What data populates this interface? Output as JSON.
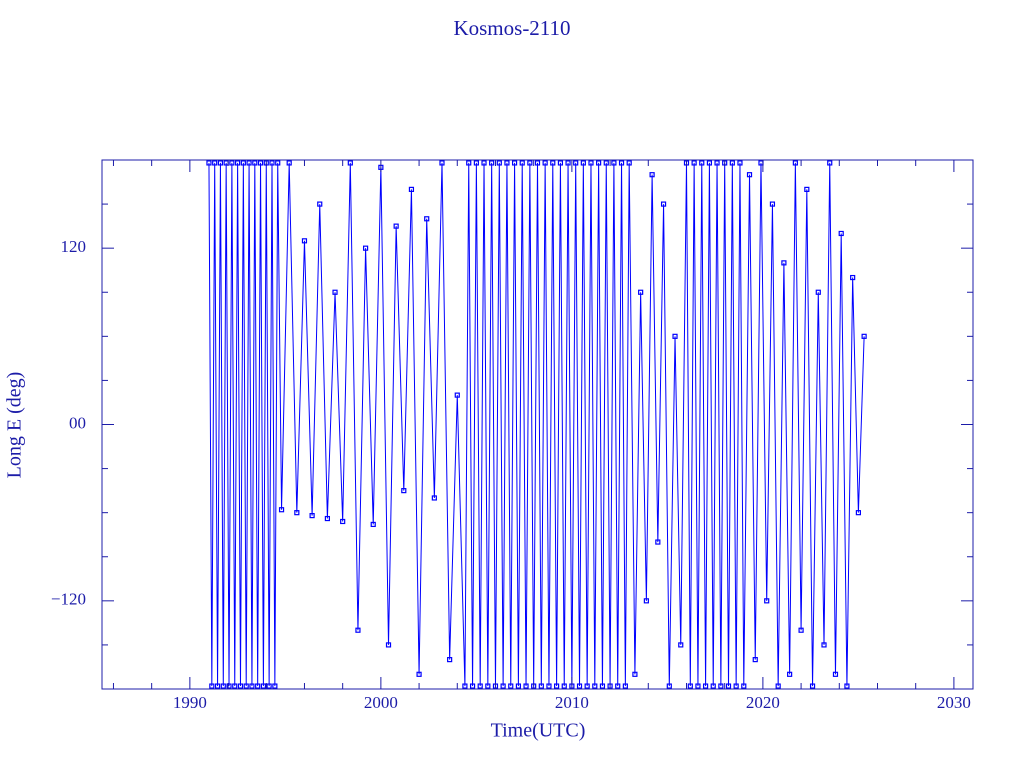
{
  "chart_data": {
    "type": "line",
    "title": "Kosmos-2110",
    "x_label": "Time(UTC)",
    "y_label": "Long E (deg)",
    "color": "#0000ff",
    "marker": "square",
    "xlim": [
      1985.4,
      2031.0
    ],
    "xticks": [
      1990,
      2000,
      2010,
      2020,
      2030
    ],
    "xminorticks": [
      1986,
      1988,
      1992,
      1994,
      1996,
      1998,
      2002,
      2004,
      2006,
      2008,
      2012,
      2014,
      2016,
      2018,
      2022,
      2024,
      2026,
      2028
    ],
    "ylim": [
      -180,
      180
    ],
    "yticks": [
      {
        "value": -120,
        "label": "−120"
      },
      {
        "value": 0,
        "label": "00"
      },
      120
    ],
    "yminorticks": [
      -150,
      -90,
      -60,
      -30,
      30,
      60,
      90,
      150
    ],
    "x": [
      1991,
      1991.15,
      1991.3,
      1991.45,
      1991.6,
      1991.75,
      1991.9,
      1992.05,
      1992.2,
      1992.35,
      1992.5,
      1992.65,
      1992.8,
      1992.95,
      1993.1,
      1993.25,
      1993.4,
      1993.55,
      1993.7,
      1993.85,
      1994,
      1994.15,
      1994.3,
      1994.45,
      1994.6,
      1994.8,
      1995.2,
      1995.6,
      1996,
      1996.4,
      1996.8,
      1997.2,
      1997.6,
      1998,
      1998.4,
      1998.8,
      1999.2,
      1999.6,
      2000,
      2000.4,
      2000.8,
      2001.2,
      2001.6,
      2002,
      2002.4,
      2002.8,
      2003.2,
      2003.6,
      2004,
      2004.4,
      2004.6,
      2004.8,
      2005,
      2005.2,
      2005.4,
      2005.6,
      2005.8,
      2006,
      2006.2,
      2006.4,
      2006.6,
      2006.8,
      2007,
      2007.2,
      2007.4,
      2007.6,
      2007.8,
      2008,
      2008.2,
      2008.4,
      2008.6,
      2008.8,
      2009,
      2009.2,
      2009.4,
      2009.6,
      2009.8,
      2010,
      2010.2,
      2010.4,
      2010.6,
      2010.8,
      2011,
      2011.2,
      2011.4,
      2011.6,
      2011.8,
      2012,
      2012.2,
      2012.4,
      2012.6,
      2012.8,
      2013,
      2013.3,
      2013.6,
      2013.9,
      2014.2,
      2014.5,
      2014.8,
      2015.1,
      2015.4,
      2015.7,
      2016,
      2016.2,
      2016.4,
      2016.6,
      2016.8,
      2017,
      2017.2,
      2017.4,
      2017.6,
      2017.8,
      2018,
      2018.2,
      2018.4,
      2018.6,
      2018.8,
      2019,
      2019.3,
      2019.6,
      2019.9,
      2020.2,
      2020.5,
      2020.8,
      2021.1,
      2021.4,
      2021.7,
      2022,
      2022.3,
      2022.6,
      2022.9,
      2023.2,
      2023.5,
      2023.8,
      2024.1,
      2024.4,
      2024.7,
      2025,
      2025.3
    ],
    "y": [
      178,
      -178,
      178,
      -178,
      178,
      -178,
      178,
      -178,
      178,
      -178,
      178,
      -178,
      178,
      -178,
      178,
      -178,
      178,
      -178,
      178,
      -178,
      178,
      -178,
      178,
      -178,
      178,
      -58,
      178,
      -60,
      125,
      -62,
      150,
      -64,
      90,
      -66,
      178,
      -140,
      120,
      -68,
      175,
      -150,
      135,
      -45,
      160,
      -170,
      140,
      -50,
      178,
      -160,
      20,
      -178,
      178,
      -178,
      178,
      -178,
      178,
      -178,
      178,
      -178,
      178,
      -178,
      178,
      -178,
      178,
      -178,
      178,
      -178,
      178,
      -178,
      178,
      -178,
      178,
      -178,
      178,
      -178,
      178,
      -178,
      178,
      -178,
      178,
      -178,
      178,
      -178,
      178,
      -178,
      178,
      -178,
      178,
      -178,
      178,
      -178,
      178,
      -178,
      178,
      -170,
      90,
      -120,
      170,
      -80,
      150,
      -178,
      60,
      -150,
      178,
      -178,
      178,
      -178,
      178,
      -178,
      178,
      -178,
      178,
      -178,
      178,
      -178,
      178,
      -178,
      178,
      -178,
      170,
      -160,
      178,
      -120,
      150,
      -178,
      110,
      -170,
      178,
      -140,
      160,
      -178,
      90,
      -150,
      178,
      -170,
      130,
      -178,
      100,
      -60,
      60
    ]
  }
}
